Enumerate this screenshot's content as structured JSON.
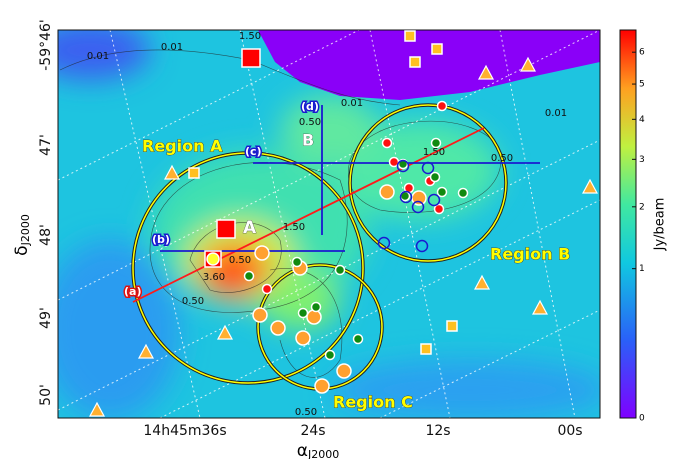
{
  "chart_data": {
    "type": "map",
    "xlabel": {
      "symbol": "α",
      "subscript": "J2000"
    },
    "ylabel": {
      "symbol": "δ",
      "subscript": "J2000"
    },
    "x_tick_labels": [
      "14h45m36s",
      "24s",
      "12s",
      "00s"
    ],
    "y_tick_labels": [
      "-59°46'",
      "47'",
      "48'",
      "49'",
      "50'"
    ],
    "regions": [
      "Region A",
      "Region B",
      "Region C"
    ],
    "source_labels": [
      "A",
      "B"
    ],
    "cut_labels": [
      "(a)",
      "(b)",
      "(c)",
      "(d)"
    ],
    "contour_labels": [
      "1.50",
      "0.01",
      "0.01",
      "0.01",
      "0.01",
      "0.50",
      "1.50",
      "0.50",
      "1.50",
      "0.50",
      "3.60",
      "0.50",
      "0.50"
    ],
    "colorbar": {
      "label": "Jy/beam",
      "scale": "sqrt",
      "lim": [
        0,
        6.75
      ],
      "ticks": [
        0,
        1,
        2,
        3,
        4,
        5,
        6
      ]
    }
  }
}
